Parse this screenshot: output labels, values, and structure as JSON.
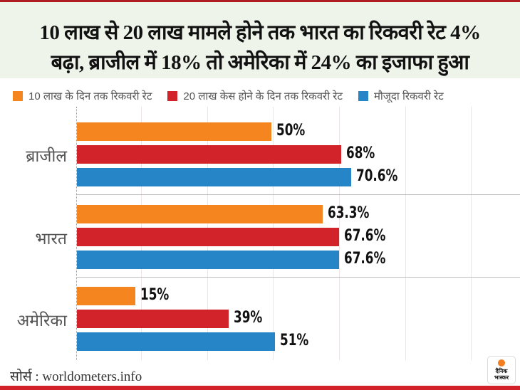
{
  "header": {
    "title_line1": "10 लाख से 20 लाख मामले होने तक भारत का रिकवरी रेट 4%",
    "title_line2": "बढ़ा, ब्राजील में 18% तो अमेरिका में 24% का इजाफा हुआ"
  },
  "colors": {
    "orange": "#f4851f",
    "red": "#d2232b",
    "blue": "#2585c7",
    "accent_border": "#d22128"
  },
  "chart_data": {
    "type": "bar",
    "orientation": "horizontal",
    "title": "10 लाख से 20 लाख मामले होने तक भारत का रिकवरी रेट 4% बढ़ा, ब्राजील में 18% तो अमेरिका में 24% का इजाफा हुआ",
    "xlabel": "",
    "ylabel": "",
    "xlim": [
      0,
      113
    ],
    "grid": true,
    "legend_position": "top",
    "categories": [
      "ब्राजील",
      "भारत",
      "अमेरिका"
    ],
    "series": [
      {
        "name": "10 लाख के दिन तक रिकवरी रेट",
        "color": "#f4851f",
        "values": [
          50,
          63.3,
          15
        ],
        "labels": [
          "50%",
          "63.3%",
          "15%"
        ]
      },
      {
        "name": "20 लाख केस होने के दिन तक रिकवरी रेट",
        "color": "#d2232b",
        "values": [
          68,
          67.6,
          39
        ],
        "labels": [
          "68%",
          "67.6%",
          "39%"
        ]
      },
      {
        "name": "मौजूदा रिकवरी रेट",
        "color": "#2585c7",
        "values": [
          70.6,
          67.6,
          51
        ],
        "labels": [
          "70.6%",
          "67.6%",
          "51%"
        ]
      }
    ]
  },
  "footer": {
    "source_label": "सोर्स : worldometers.info",
    "logo_text_line1": "दैनिक",
    "logo_text_line2": "भास्कर"
  }
}
